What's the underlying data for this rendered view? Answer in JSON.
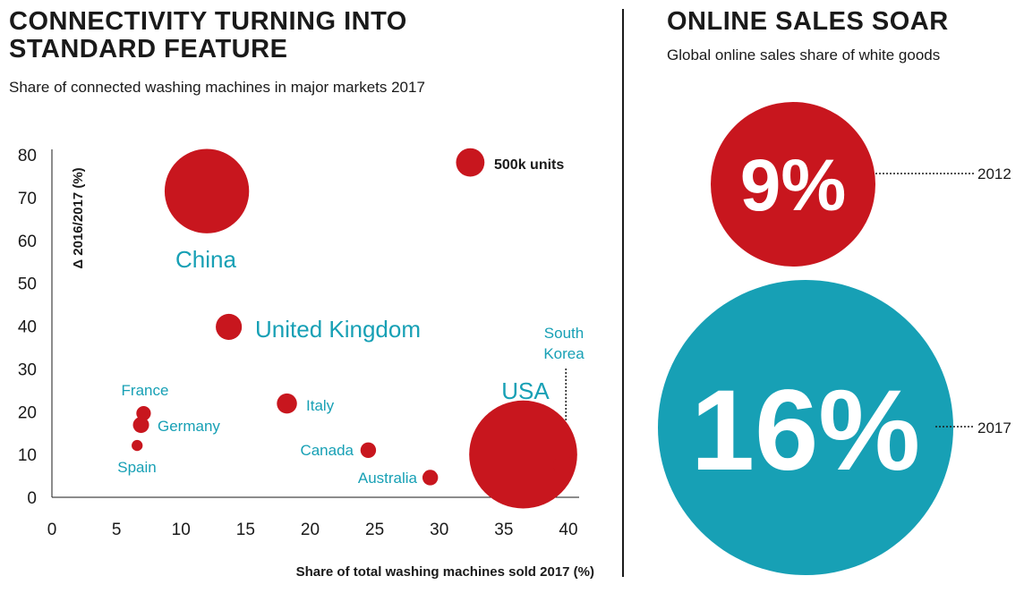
{
  "left": {
    "title_line1": "CONNECTIVITY TURNING INTO",
    "title_line2": "STANDARD FEATURE",
    "subtitle": "Share of connected washing machines in major markets 2017"
  },
  "right": {
    "title": "ONLINE SALES SOAR",
    "subtitle": "Global online sales share of white goods"
  },
  "colors": {
    "red": "#c8161e",
    "teal": "#17a0b5",
    "text": "#1a1a1a"
  },
  "chart_data": [
    {
      "type": "scatter",
      "title": "CONNECTIVITY TURNING INTO STANDARD FEATURE",
      "subtitle": "Share of connected washing machines in major markets 2017",
      "xlabel": "Share of total washing machines sold 2017 (%)",
      "ylabel": "Δ 2016/2017 (%)",
      "xlim": [
        0,
        40
      ],
      "ylim": [
        0,
        80
      ],
      "xticks": [
        "0",
        "5",
        "10",
        "15",
        "20",
        "25",
        "30",
        "35",
        "40"
      ],
      "yticks": [
        "0",
        "10",
        "20",
        "30",
        "40",
        "50",
        "60",
        "70",
        "80"
      ],
      "size_reference": {
        "label": "500k units",
        "x": 32.4,
        "y": 78.2,
        "units_k": 500
      },
      "points": [
        {
          "label": "China",
          "x": 12.0,
          "y": 71.5,
          "units_k": 4400
        },
        {
          "label": "United Kingdom",
          "x": 13.7,
          "y": 39.8,
          "units_k": 420
        },
        {
          "label": "USA",
          "x": 36.5,
          "y": 10.0,
          "units_k": 7200
        },
        {
          "label": "South Korea",
          "x": 39.6,
          "y": 7.5,
          "units_k": 250
        },
        {
          "label": "France",
          "x": 7.1,
          "y": 19.6,
          "units_k": 130
        },
        {
          "label": "Germany",
          "x": 6.9,
          "y": 16.9,
          "units_k": 160
        },
        {
          "label": "Spain",
          "x": 6.6,
          "y": 12.1,
          "units_k": 75
        },
        {
          "label": "Italy",
          "x": 18.2,
          "y": 21.9,
          "units_k": 250
        },
        {
          "label": "Canada",
          "x": 24.5,
          "y": 11.0,
          "units_k": 150
        },
        {
          "label": "Australia",
          "x": 29.3,
          "y": 4.6,
          "units_k": 150
        }
      ]
    },
    {
      "type": "bubble",
      "title": "ONLINE SALES SOAR",
      "subtitle": "Global online sales share of white goods",
      "series": [
        {
          "name": "2012",
          "value": 9,
          "label": "9%",
          "color": "#c8161e"
        },
        {
          "name": "2017",
          "value": 16,
          "label": "16%",
          "color": "#17a0b5"
        }
      ]
    }
  ]
}
